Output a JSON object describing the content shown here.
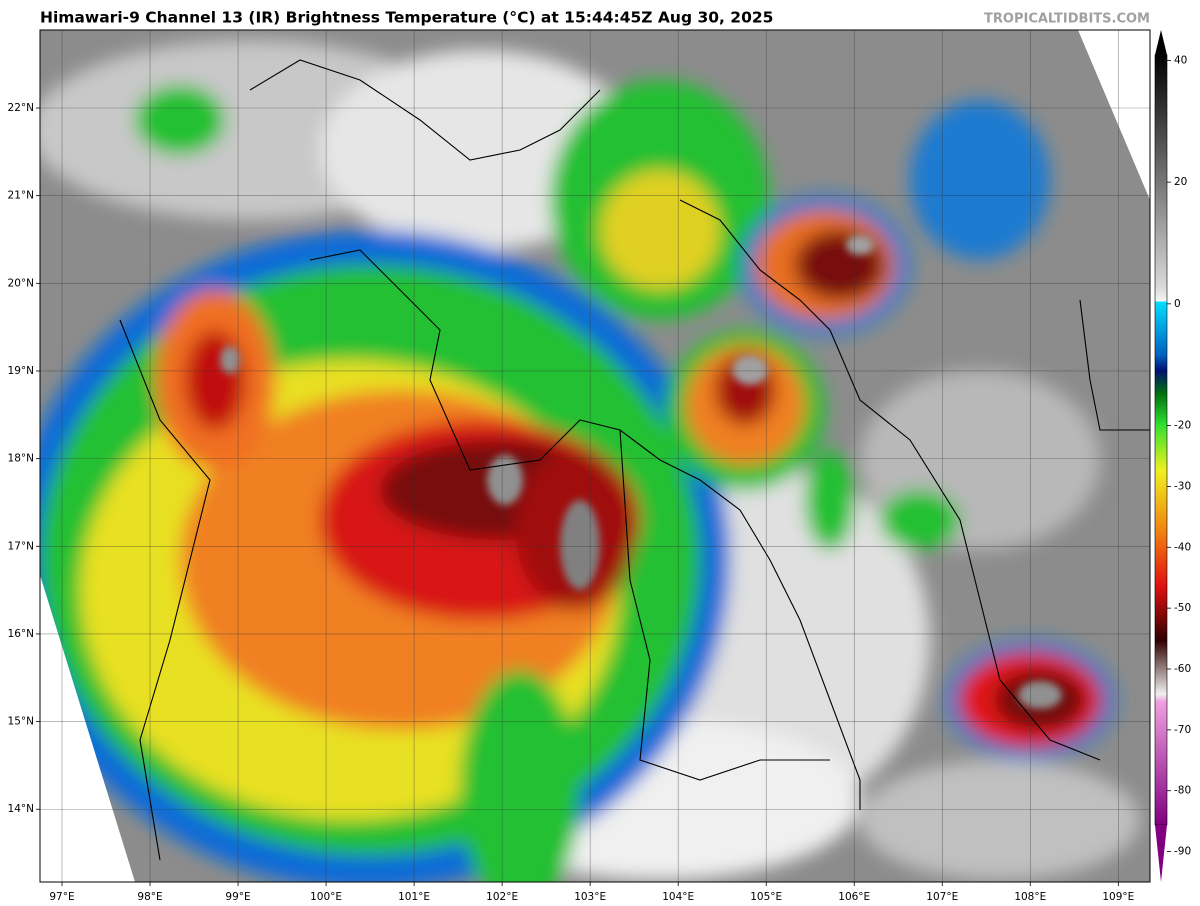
{
  "header": {
    "title": "Himawari-9 Channel 13 (IR) Brightness Temperature (°C) at 15:44:45Z Aug 30, 2025",
    "watermark": "TROPICALTIDBITS.COM"
  },
  "map": {
    "lonlim": [
      96.75,
      109.36
    ],
    "latlim": [
      13.17,
      22.89
    ],
    "lon_ticks": [
      {
        "value": 97,
        "label": "97°E"
      },
      {
        "value": 98,
        "label": "98°E"
      },
      {
        "value": 99,
        "label": "99°E"
      },
      {
        "value": 100,
        "label": "100°E"
      },
      {
        "value": 101,
        "label": "101°E"
      },
      {
        "value": 102,
        "label": "102°E"
      },
      {
        "value": 103,
        "label": "103°E"
      },
      {
        "value": 104,
        "label": "104°E"
      },
      {
        "value": 105,
        "label": "105°E"
      },
      {
        "value": 106,
        "label": "106°E"
      },
      {
        "value": 107,
        "label": "107°E"
      },
      {
        "value": 108,
        "label": "108°E"
      },
      {
        "value": 109,
        "label": "109°E"
      }
    ],
    "lat_ticks": [
      {
        "value": 22,
        "label": "22°N"
      },
      {
        "value": 21,
        "label": "21°N"
      },
      {
        "value": 20,
        "label": "20°N"
      },
      {
        "value": 19,
        "label": "19°N"
      },
      {
        "value": 18,
        "label": "18°N"
      },
      {
        "value": 17,
        "label": "17°N"
      },
      {
        "value": 16,
        "label": "16°N"
      },
      {
        "value": 15,
        "label": "15°N"
      },
      {
        "value": 14,
        "label": "14°N"
      }
    ]
  },
  "colorbar": {
    "lim": [
      -95,
      45
    ],
    "ticks": [
      40,
      20,
      0,
      -20,
      -30,
      -40,
      -50,
      -60,
      -70,
      -80,
      -90
    ]
  }
}
